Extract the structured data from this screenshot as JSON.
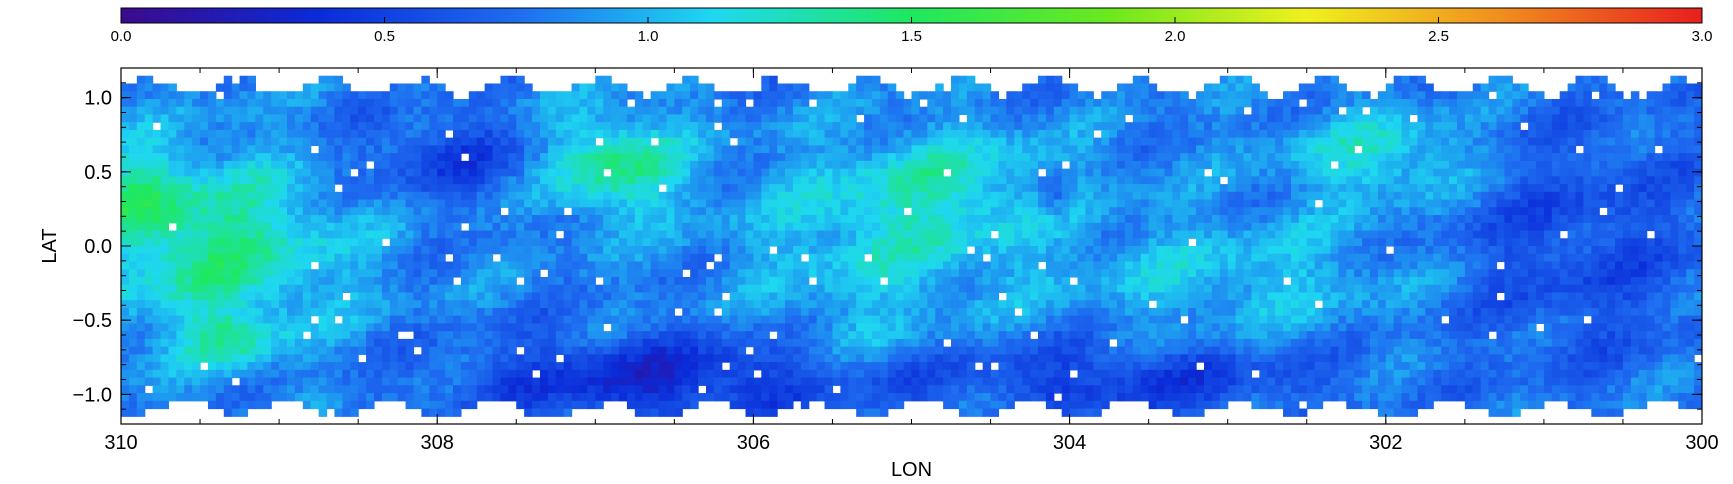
{
  "chart_data": {
    "type": "heatmap",
    "title": "",
    "xlabel": "LON",
    "ylabel": "LAT",
    "xlim": [
      310,
      300
    ],
    "ylim": [
      -1.2,
      1.2
    ],
    "x_ticks": [
      "310",
      "308",
      "306",
      "304",
      "302",
      "300"
    ],
    "y_ticks": [
      "1.0",
      "0.5",
      "0.0",
      "−0.5",
      "−1.0"
    ],
    "colorbar": {
      "range": [
        0.0,
        3.0
      ],
      "ticks": [
        "0.0",
        "0.5",
        "1.0",
        "1.5",
        "2.0",
        "2.5",
        "3.0"
      ],
      "colormap": "rainbow",
      "stops": [
        "#3b0a8c",
        "#0a2bd8",
        "#1e6cf0",
        "#1ed8f0",
        "#1ee860",
        "#6ce81e",
        "#f0f01e",
        "#f08c1e",
        "#e81e1e"
      ]
    },
    "blank_color": "#ffffff"
  }
}
